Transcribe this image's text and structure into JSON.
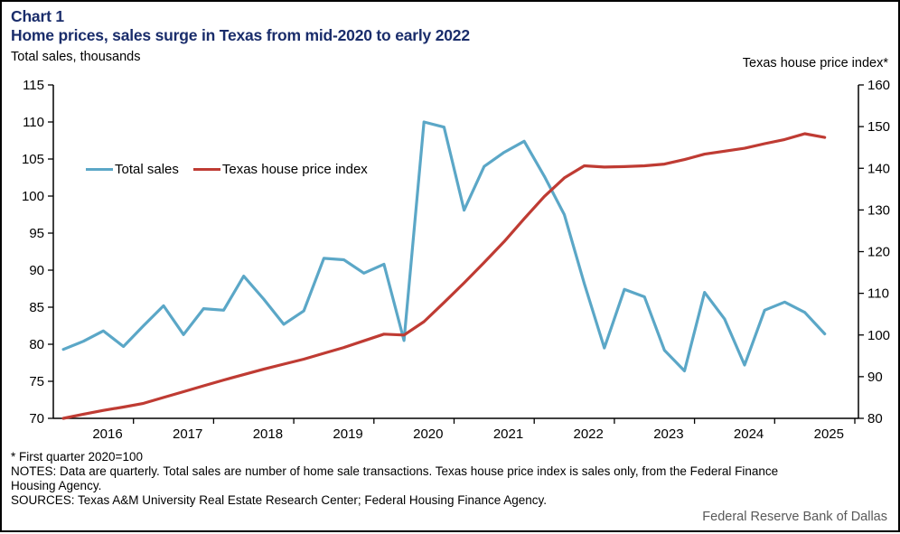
{
  "page": {
    "title_label": "Chart 1",
    "title": "Home prices, sales surge in Texas from mid-2020 to early 2022",
    "left_axis_title": "Total sales, thousands",
    "right_axis_title": "Texas house price index*",
    "footnote": "* First quarter 2020=100",
    "notes": "NOTES: Data are quarterly. Total sales are number of home sale transactions. Texas house price index is sales only, from the Federal Finance\nHousing Agency.",
    "sources": "SOURCES: Texas A&M University Real Estate Research Center; Federal Housing Finance Agency.",
    "attribution": "Federal Reserve Bank of Dallas"
  },
  "colors": {
    "title": "#1a2d6b",
    "sales_line": "#5BA7C7",
    "hpi_line": "#BF3B33",
    "axis": "#000000",
    "attribution": "#595959"
  },
  "chart_data": {
    "type": "line",
    "frequency": "quarterly",
    "x_start": "2016 Q1",
    "x_end": "2025 Q3",
    "x_tick_labels": [
      "2016",
      "2017",
      "2018",
      "2019",
      "2020",
      "2021",
      "2022",
      "2023",
      "2024",
      "2025"
    ],
    "left_axis": {
      "label": "Total sales, thousands",
      "min": 70,
      "max": 115,
      "step": 5,
      "ticks": [
        70,
        75,
        80,
        85,
        90,
        95,
        100,
        105,
        110,
        115
      ]
    },
    "right_axis": {
      "label": "Texas house price index*",
      "min": 80,
      "max": 160,
      "step": 10,
      "ticks": [
        80,
        90,
        100,
        110,
        120,
        130,
        140,
        150,
        160
      ]
    },
    "legend": [
      "Total sales",
      "Texas house price index"
    ],
    "series": [
      {
        "name": "Total sales",
        "axis": "left",
        "color_key": "sales_line",
        "values": [
          79.3,
          80.4,
          81.8,
          79.7,
          82.5,
          85.2,
          81.3,
          84.8,
          84.6,
          89.2,
          86.1,
          82.7,
          84.5,
          91.6,
          91.4,
          89.6,
          90.8,
          80.5,
          110.0,
          109.3,
          98.1,
          104.0,
          105.9,
          107.4,
          102.7,
          97.5,
          88.2,
          79.5,
          87.4,
          86.4,
          79.2,
          76.4,
          87.0,
          83.4,
          77.2,
          84.6,
          85.7,
          84.3,
          81.4
        ]
      },
      {
        "name": "Texas house price index",
        "axis": "right",
        "color_key": "hpi_line",
        "values": [
          80.0,
          81.0,
          81.9,
          82.7,
          83.6,
          85.0,
          86.4,
          87.8,
          89.2,
          90.5,
          91.8,
          93.0,
          94.2,
          95.6,
          97.0,
          98.6,
          100.2,
          100.0,
          103.2,
          107.8,
          112.5,
          117.4,
          122.4,
          127.9,
          133.2,
          137.7,
          140.6,
          140.3,
          140.4,
          140.6,
          141.0,
          142.1,
          143.4,
          144.1,
          144.8,
          145.9,
          146.9,
          148.3,
          147.4
        ]
      }
    ]
  }
}
